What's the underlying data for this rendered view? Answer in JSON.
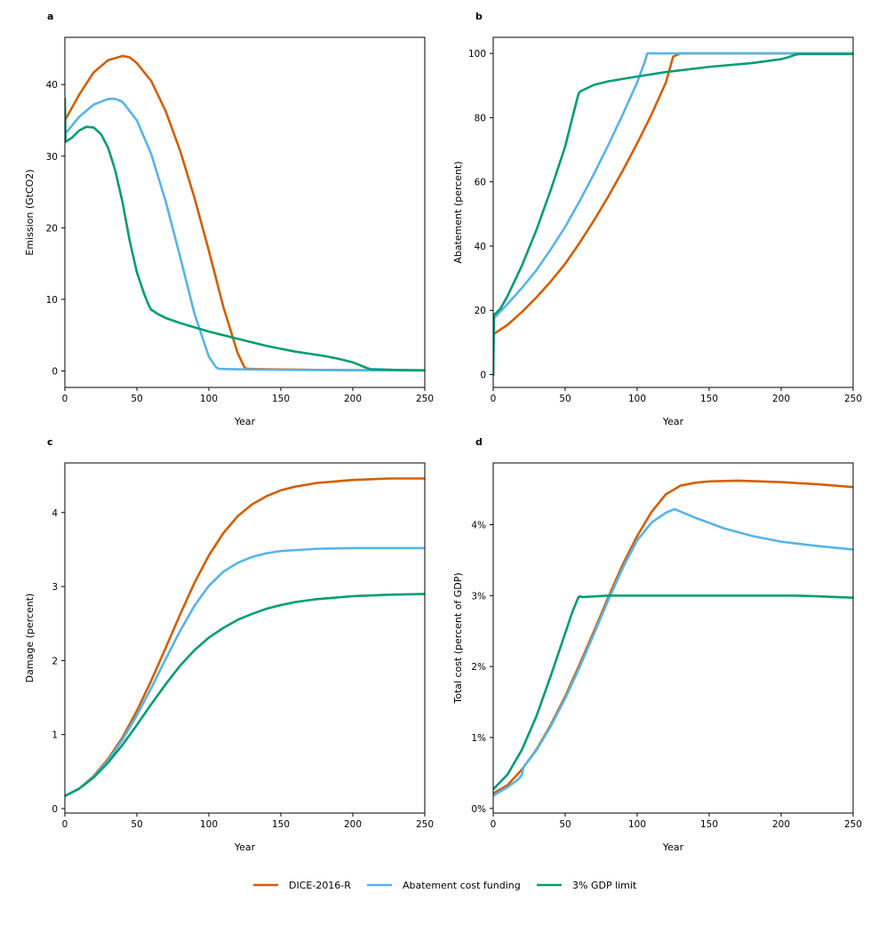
{
  "legend": {
    "items": [
      {
        "label": "DICE-2016-R",
        "color": "#d55e00"
      },
      {
        "label": "Abatement cost funding",
        "color": "#56b4e9"
      },
      {
        "label": "3% GDP limit",
        "color": "#009e73"
      }
    ]
  },
  "chart_data": [
    {
      "panel_label": "a",
      "type": "line",
      "xlabel": "Year",
      "ylabel": "Emission (GtCO2)",
      "xlim": [
        0,
        250
      ],
      "ylim": [
        -2.3,
        46.6
      ],
      "xticks": [
        0,
        50,
        100,
        150,
        200,
        250
      ],
      "yticks": [
        0,
        10,
        20,
        30,
        40
      ],
      "ytick_labels": [
        "0",
        "10",
        "20",
        "30",
        "40"
      ],
      "series": [
        {
          "name": "DICE-2016-R",
          "color": "#d55e00",
          "x": [
            0,
            10,
            20,
            30,
            40,
            45,
            50,
            60,
            70,
            80,
            90,
            100,
            110,
            120,
            125,
            127,
            135,
            150,
            175,
            200,
            225,
            250
          ],
          "y": [
            35.0,
            38.6,
            41.7,
            43.4,
            44.0,
            43.8,
            43.0,
            40.5,
            36.3,
            30.8,
            24.2,
            16.8,
            9.0,
            2.5,
            0.4,
            0.3,
            0.25,
            0.2,
            0.15,
            0.12,
            0.1,
            0.08
          ]
        },
        {
          "name": "Abatement cost funding",
          "color": "#56b4e9",
          "x": [
            0,
            0.5,
            10,
            20,
            30,
            35,
            40,
            50,
            60,
            70,
            80,
            90,
            100,
            105,
            107,
            115,
            130,
            150,
            175,
            200,
            225,
            250
          ],
          "y": [
            32.7,
            33.2,
            35.5,
            37.2,
            38.0,
            38.0,
            37.6,
            35.0,
            30.3,
            23.7,
            16.0,
            8.0,
            2.0,
            0.5,
            0.3,
            0.25,
            0.2,
            0.15,
            0.12,
            0.1,
            0.08,
            0.06
          ]
        },
        {
          "name": "3% GDP limit",
          "color": "#009e73",
          "x": [
            0,
            0.5,
            5,
            10,
            15,
            20,
            25,
            30,
            35,
            40,
            45,
            50,
            55,
            58,
            60,
            60.5,
            65,
            70,
            80,
            90,
            100,
            110,
            120,
            130,
            140,
            150,
            160,
            170,
            180,
            190,
            200,
            205,
            210,
            212,
            220,
            230,
            240,
            250
          ],
          "y": [
            38.0,
            32.0,
            32.6,
            33.6,
            34.1,
            34.0,
            33.1,
            31.2,
            28.0,
            23.6,
            18.2,
            13.8,
            10.8,
            9.3,
            8.5,
            8.5,
            7.9,
            7.4,
            6.7,
            6.1,
            5.5,
            5.0,
            4.5,
            4.0,
            3.5,
            3.1,
            2.7,
            2.4,
            2.1,
            1.7,
            1.2,
            0.8,
            0.4,
            0.25,
            0.2,
            0.15,
            0.12,
            0.1
          ]
        }
      ]
    },
    {
      "panel_label": "b",
      "type": "line",
      "xlabel": "Year",
      "ylabel": "Abatement (percent)",
      "xlim": [
        0,
        250
      ],
      "ylim": [
        -4,
        105
      ],
      "xticks": [
        0,
        50,
        100,
        150,
        200,
        250
      ],
      "yticks": [
        0,
        20,
        40,
        60,
        80,
        100
      ],
      "ytick_labels": [
        "0",
        "20",
        "40",
        "60",
        "80",
        "100"
      ],
      "series": [
        {
          "name": "DICE-2016-R",
          "color": "#d55e00",
          "x": [
            0,
            10,
            20,
            30,
            40,
            50,
            60,
            70,
            80,
            90,
            100,
            110,
            120,
            125,
            130,
            150,
            200,
            250
          ],
          "y": [
            12.5,
            15.5,
            19.5,
            24.0,
            29.0,
            34.5,
            41.0,
            48.0,
            55.5,
            63.5,
            72.0,
            81.0,
            91.0,
            99.0,
            100,
            100,
            100,
            100
          ]
        },
        {
          "name": "Abatement cost funding",
          "color": "#56b4e9",
          "x": [
            0,
            0.5,
            10,
            20,
            30,
            40,
            50,
            60,
            70,
            80,
            90,
            100,
            105,
            107,
            110,
            150,
            200,
            250
          ],
          "y": [
            0,
            17.5,
            22.0,
            27.0,
            32.5,
            39.0,
            46.0,
            54.0,
            62.5,
            71.5,
            81.0,
            91.0,
            97.0,
            100,
            100,
            100,
            100,
            100
          ]
        },
        {
          "name": "3% GDP limit",
          "color": "#009e73",
          "x": [
            0,
            0.5,
            5,
            10,
            20,
            30,
            40,
            50,
            55,
            59,
            60,
            62,
            70,
            80,
            100,
            120,
            150,
            180,
            200,
            205,
            210,
            213,
            220,
            250
          ],
          "y": [
            0,
            18.5,
            20.5,
            24.5,
            34.0,
            45.0,
            57.5,
            71.0,
            80.0,
            87.0,
            88.0,
            88.5,
            90.2,
            91.3,
            92.8,
            94.2,
            95.8,
            97.0,
            98.2,
            98.8,
            99.6,
            99.8,
            99.8,
            99.8
          ]
        }
      ]
    },
    {
      "panel_label": "c",
      "type": "line",
      "xlabel": "Year",
      "ylabel": "Damage (percent)",
      "xlim": [
        0,
        250
      ],
      "ylim": [
        -0.06,
        4.67
      ],
      "xticks": [
        0,
        50,
        100,
        150,
        200,
        250
      ],
      "yticks": [
        0,
        1,
        2,
        3,
        4
      ],
      "ytick_labels": [
        "0",
        "1",
        "2",
        "3",
        "4"
      ],
      "series": [
        {
          "name": "DICE-2016-R",
          "color": "#d55e00",
          "x": [
            0,
            10,
            20,
            30,
            40,
            50,
            60,
            70,
            80,
            90,
            100,
            110,
            120,
            130,
            140,
            150,
            160,
            175,
            200,
            225,
            250
          ],
          "y": [
            0.17,
            0.27,
            0.44,
            0.67,
            0.96,
            1.32,
            1.73,
            2.17,
            2.62,
            3.05,
            3.42,
            3.72,
            3.95,
            4.11,
            4.22,
            4.3,
            4.35,
            4.4,
            4.44,
            4.46,
            4.46
          ]
        },
        {
          "name": "Abatement cost funding",
          "color": "#56b4e9",
          "x": [
            0,
            10,
            20,
            30,
            40,
            50,
            60,
            70,
            80,
            90,
            100,
            110,
            120,
            130,
            140,
            150,
            175,
            200,
            225,
            250
          ],
          "y": [
            0.17,
            0.27,
            0.43,
            0.65,
            0.93,
            1.26,
            1.63,
            2.02,
            2.4,
            2.74,
            3.01,
            3.2,
            3.32,
            3.4,
            3.45,
            3.48,
            3.51,
            3.52,
            3.52,
            3.52
          ]
        },
        {
          "name": "3% GDP limit",
          "color": "#009e73",
          "x": [
            0,
            10,
            20,
            30,
            40,
            50,
            60,
            70,
            80,
            90,
            100,
            110,
            120,
            130,
            140,
            150,
            160,
            175,
            200,
            225,
            250
          ],
          "y": [
            0.17,
            0.27,
            0.42,
            0.62,
            0.86,
            1.13,
            1.41,
            1.68,
            1.93,
            2.14,
            2.31,
            2.44,
            2.55,
            2.63,
            2.7,
            2.75,
            2.79,
            2.83,
            2.87,
            2.89,
            2.9
          ]
        }
      ]
    },
    {
      "panel_label": "d",
      "type": "line",
      "xlabel": "Year",
      "ylabel": "Total cost (percent of GDP)",
      "xlim": [
        0,
        250
      ],
      "ylim": [
        -0.065,
        4.87
      ],
      "xticks": [
        0,
        50,
        100,
        150,
        200,
        250
      ],
      "yticks": [
        0,
        1,
        2,
        3,
        4
      ],
      "ytick_labels": [
        "0%",
        "1%",
        "2%",
        "3%",
        "4%"
      ],
      "series": [
        {
          "name": "DICE-2016-R",
          "color": "#d55e00",
          "x": [
            0,
            10,
            20,
            30,
            40,
            50,
            60,
            70,
            80,
            90,
            100,
            110,
            120,
            126,
            130,
            140,
            150,
            170,
            200,
            225,
            250
          ],
          "y": [
            0.21,
            0.33,
            0.55,
            0.83,
            1.18,
            1.58,
            2.03,
            2.5,
            2.98,
            3.44,
            3.84,
            4.18,
            4.43,
            4.5,
            4.55,
            4.59,
            4.61,
            4.62,
            4.6,
            4.57,
            4.53
          ]
        },
        {
          "name": "Abatement cost funding",
          "color": "#56b4e9",
          "x": [
            0,
            10,
            18,
            20,
            21,
            30,
            40,
            50,
            60,
            70,
            80,
            90,
            100,
            110,
            120,
            126,
            127,
            140,
            160,
            180,
            200,
            225,
            250
          ],
          "y": [
            0.18,
            0.3,
            0.42,
            0.48,
            0.58,
            0.82,
            1.16,
            1.55,
            1.99,
            2.46,
            2.94,
            3.39,
            3.78,
            4.03,
            4.17,
            4.22,
            4.21,
            4.1,
            3.95,
            3.84,
            3.76,
            3.7,
            3.65
          ]
        },
        {
          "name": "3% GDP limit",
          "color": "#009e73",
          "x": [
            0,
            10,
            20,
            30,
            40,
            50,
            55,
            59,
            60,
            62,
            80,
            100,
            150,
            200,
            210,
            225,
            250
          ],
          "y": [
            0.27,
            0.48,
            0.83,
            1.3,
            1.87,
            2.47,
            2.77,
            2.97,
            2.99,
            2.98,
            3.0,
            3.0,
            3.0,
            3.0,
            3.0,
            2.99,
            2.97
          ]
        }
      ]
    }
  ]
}
